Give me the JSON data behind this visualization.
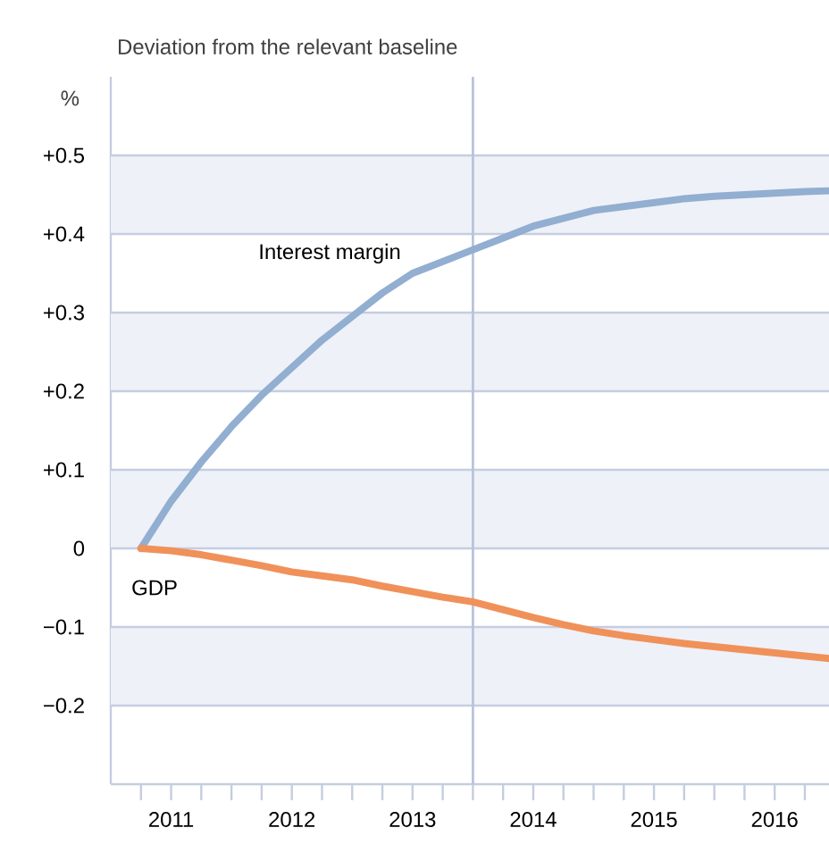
{
  "chart_data": {
    "type": "line",
    "title": "Deviation from the relevant baseline",
    "ylabel": "%",
    "x": [
      2011.25,
      2011.5,
      2011.75,
      2012.0,
      2012.25,
      2012.5,
      2012.75,
      2013.0,
      2013.25,
      2013.5,
      2013.75,
      2014.0,
      2014.25,
      2014.5,
      2014.75,
      2015.0,
      2015.25,
      2015.5,
      2015.75,
      2016.0,
      2016.25,
      2016.5,
      2016.75,
      2016.95
    ],
    "series": [
      {
        "name": "Interest margin",
        "color": "#92aed0",
        "values": [
          0,
          0.06,
          0.11,
          0.155,
          0.195,
          0.23,
          0.265,
          0.295,
          0.325,
          0.35,
          0.365,
          0.38,
          0.395,
          0.41,
          0.42,
          0.43,
          0.435,
          0.44,
          0.445,
          0.448,
          0.45,
          0.452,
          0.454,
          0.455
        ]
      },
      {
        "name": "GDP",
        "color": "#f0915a",
        "values": [
          0,
          -0.003,
          -0.008,
          -0.015,
          -0.022,
          -0.03,
          -0.035,
          -0.04,
          -0.048,
          -0.055,
          -0.062,
          -0.068,
          -0.078,
          -0.088,
          -0.097,
          -0.105,
          -0.111,
          -0.116,
          -0.121,
          -0.125,
          -0.129,
          -0.133,
          -0.137,
          -0.14
        ]
      }
    ],
    "xlim": [
      2011,
      2016.95
    ],
    "ylim": [
      -0.3,
      0.6
    ],
    "xticks": [
      {
        "value": 2011.25,
        "label": null
      },
      {
        "value": 2011.5,
        "label": "2011"
      },
      {
        "value": 2011.75,
        "label": null
      },
      {
        "value": 2012,
        "label": null
      },
      {
        "value": 2012.25,
        "label": null
      },
      {
        "value": 2012.5,
        "label": "2012"
      },
      {
        "value": 2012.75,
        "label": null
      },
      {
        "value": 2013,
        "label": null
      },
      {
        "value": 2013.25,
        "label": null
      },
      {
        "value": 2013.5,
        "label": "2013"
      },
      {
        "value": 2013.75,
        "label": null
      },
      {
        "value": 2014,
        "label": null
      },
      {
        "value": 2014.25,
        "label": null
      },
      {
        "value": 2014.5,
        "label": "2014"
      },
      {
        "value": 2014.75,
        "label": null
      },
      {
        "value": 2015,
        "label": null
      },
      {
        "value": 2015.25,
        "label": null
      },
      {
        "value": 2015.5,
        "label": "2015"
      },
      {
        "value": 2015.75,
        "label": null
      },
      {
        "value": 2016,
        "label": null
      },
      {
        "value": 2016.25,
        "label": null
      },
      {
        "value": 2016.5,
        "label": "2016"
      },
      {
        "value": 2016.75,
        "label": null
      }
    ],
    "yticks": [
      {
        "value": -0.2,
        "label": "−0.2"
      },
      {
        "value": -0.1,
        "label": "−0.1"
      },
      0,
      {
        "value": 0.1,
        "label": "+0.1"
      },
      {
        "value": 0.2,
        "label": "+0.2"
      },
      {
        "value": 0.3,
        "label": "+0.3"
      },
      {
        "value": 0.4,
        "label": "+0.4"
      },
      {
        "value": 0.5,
        "label": "+0.5"
      }
    ],
    "grid": "y",
    "legend": false,
    "ref_lines": [
      {
        "axis": "x",
        "value": 2014,
        "color": "#b8c4da"
      }
    ],
    "bands": [
      {
        "axis": "y",
        "from": 0.4,
        "to": 0.5,
        "color": "#eef1f8"
      },
      {
        "axis": "y",
        "from": 0.2,
        "to": 0.3,
        "color": "#eef1f8"
      },
      {
        "axis": "y",
        "from": 0,
        "to": 0.1,
        "color": "#eef1f8"
      },
      {
        "axis": "y",
        "from": -0.2,
        "to": -0.1,
        "color": "#eef1f8"
      }
    ]
  }
}
